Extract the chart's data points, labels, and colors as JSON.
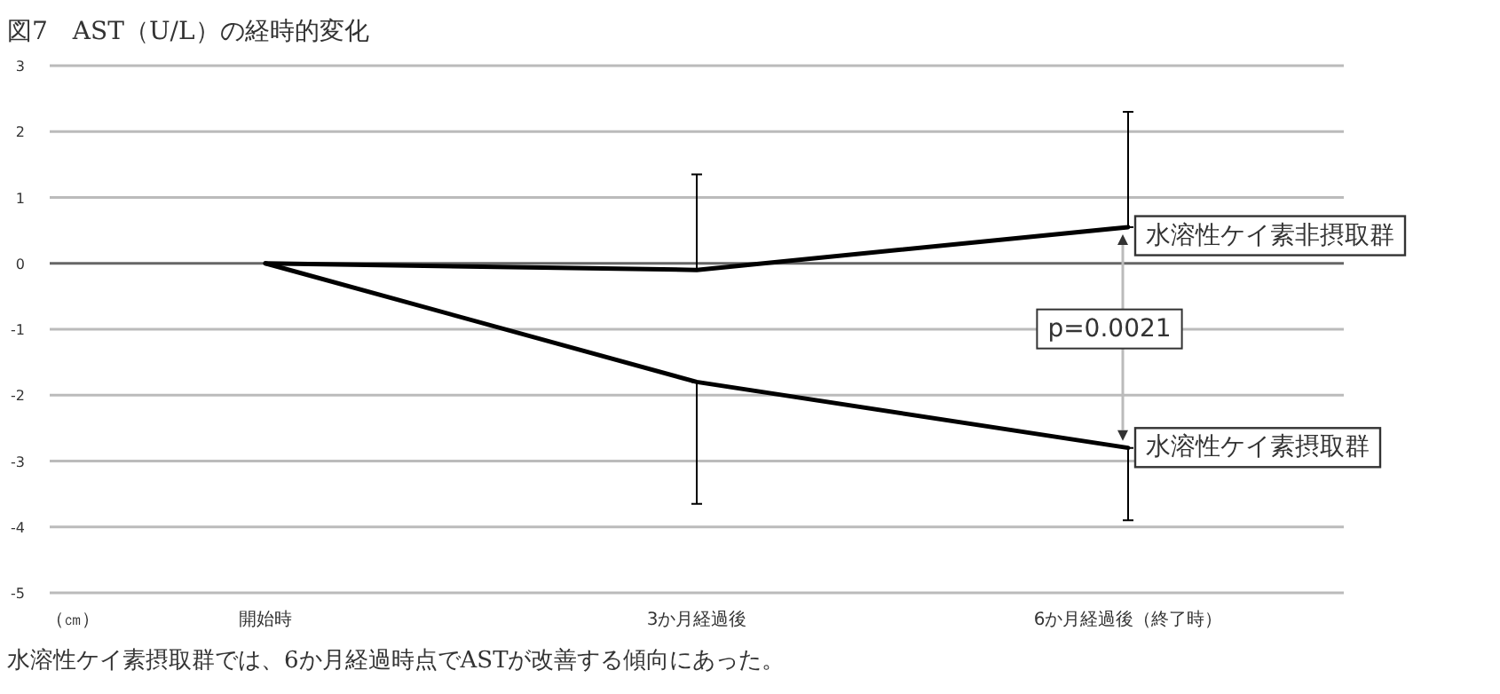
{
  "chart_data": {
    "type": "line",
    "title": "図7　AST（U/L）の経時的変化",
    "categories": [
      "開始時",
      "3か月経過後",
      "6か月経過後（終了時）"
    ],
    "series": [
      {
        "name": "水溶性ケイ素非摂取群",
        "color": "#000000",
        "values": [
          0,
          -0.1,
          0.55
        ],
        "errors": [
          null,
          [
            -0.1,
            1.35
          ],
          [
            0.55,
            2.3
          ]
        ]
      },
      {
        "name": "水溶性ケイ素摂取群",
        "color": "#000000",
        "values": [
          0,
          -1.8,
          -2.8
        ],
        "errors": [
          null,
          [
            -3.65,
            -1.8
          ],
          [
            -3.9,
            -2.8
          ]
        ]
      }
    ],
    "ylim": [
      -5,
      3
    ],
    "yticks": [
      -5,
      -4,
      -3,
      -2,
      -1,
      0,
      1,
      2,
      3
    ],
    "grid": "y",
    "legend": false,
    "marker": "none",
    "line_style": "solid",
    "annotations": [
      "p=0.0021",
      "（㎝）",
      "水溶性ケイ素摂取群では、6か月経過時点でASTが改善する傾向にあった。"
    ]
  }
}
